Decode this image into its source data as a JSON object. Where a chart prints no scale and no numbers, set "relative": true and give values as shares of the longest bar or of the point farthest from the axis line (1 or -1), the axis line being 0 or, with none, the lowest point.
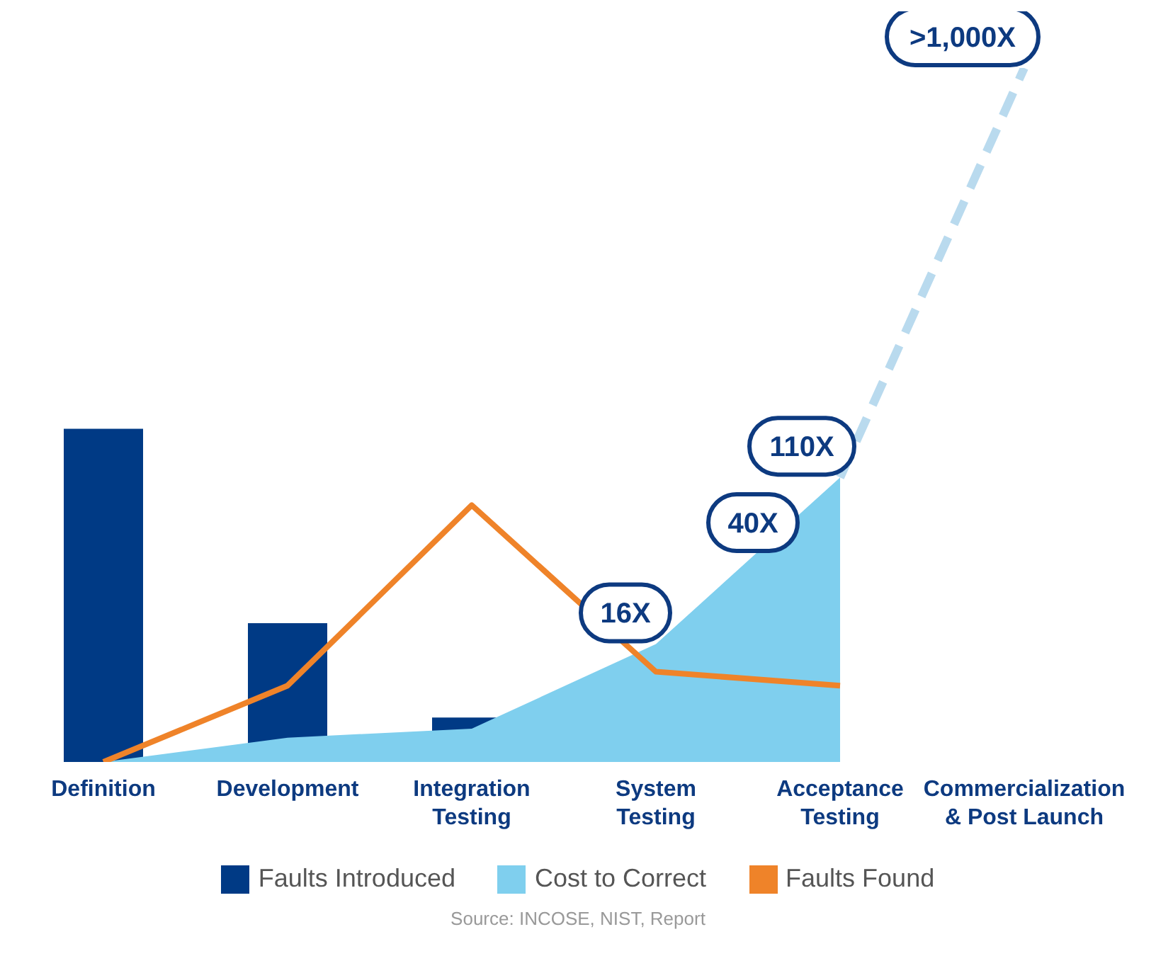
{
  "chart_data": {
    "type": "bar",
    "relative": true,
    "categories": [
      "Definition",
      "Development",
      "Integration Testing",
      "System Testing",
      "Acceptance Testing",
      "Commercialization & Post Launch"
    ],
    "series": [
      {
        "name": "Faults Introduced",
        "color": "#003a85",
        "values": [
          0.48,
          0.2,
          0.064,
          null,
          null,
          null
        ]
      },
      {
        "name": "Cost to Correct",
        "type": "area",
        "color": "#7fcfee",
        "values": [
          0,
          0.035,
          0.048,
          0.17,
          0.41,
          null
        ]
      },
      {
        "type": "line",
        "line_style": "dashed",
        "color": "#b9daee",
        "values": [
          null,
          null,
          null,
          null,
          0.41,
          1
        ]
      },
      {
        "name": "Faults Found",
        "type": "line",
        "color": "#ef8329",
        "values": [
          0,
          0.11,
          0.37,
          0.13,
          0.11,
          null
        ]
      }
    ],
    "legend": "bottom",
    "marker": "none",
    "annotations": [
      {
        "text": "16X",
        "x": "System Testing",
        "y": 0.17
      },
      {
        "text": "40X",
        "x": "Acceptance Testing",
        "y": 0.3
      },
      {
        "text": "110X",
        "x": "Acceptance Testing",
        "y": 0.41
      },
      {
        "text": ">1,000X",
        "x": "Commercialization & Post Launch",
        "y": 1
      },
      "Source: INCOSE, NIST, Report"
    ]
  }
}
